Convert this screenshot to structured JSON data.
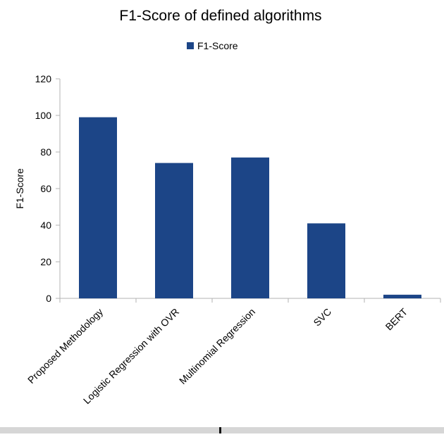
{
  "chart_data": {
    "type": "bar",
    "title": "F1-Score of defined algorithms",
    "legend": {
      "placement": "top-center"
    },
    "xlabel": "",
    "ylabel": "F1-Score",
    "ylim": [
      0,
      120
    ],
    "yticks": [
      0,
      20,
      40,
      60,
      80,
      100,
      120
    ],
    "grid": false,
    "categories": [
      "Proposed Methodology",
      "Logistic Regression with OVR",
      "Multinomial Regression",
      "SVC",
      "BERT"
    ],
    "series": [
      {
        "name": "F1-Score",
        "values": [
          99,
          74,
          77,
          41,
          2
        ],
        "color": "#1c4587"
      }
    ]
  }
}
